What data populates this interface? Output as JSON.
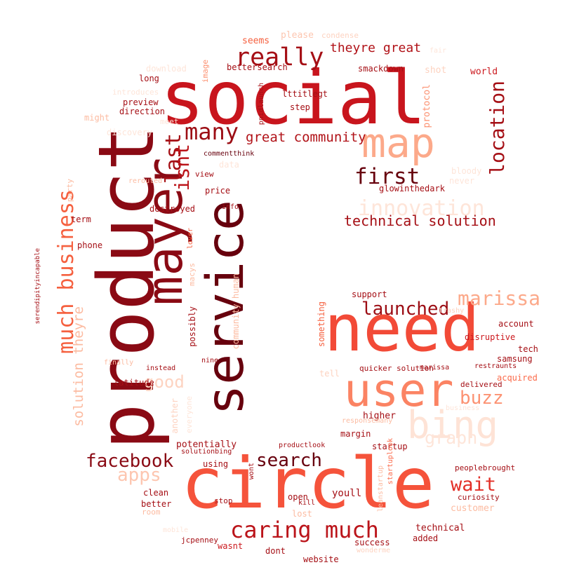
{
  "words": [
    {
      "text": "social",
      "color": "#c8151d"
    },
    {
      "text": "product",
      "color": "#8a0a14"
    },
    {
      "text": "circle",
      "color": "#f5533b"
    },
    {
      "text": "need",
      "color": "#f24a37"
    },
    {
      "text": "service",
      "color": "#67000d"
    },
    {
      "text": "mayer",
      "color": "#8a0a14"
    },
    {
      "text": "user",
      "color": "#fb8363"
    },
    {
      "text": "map",
      "color": "#fca98a"
    },
    {
      "text": "bing",
      "color": "#fee3d6"
    },
    {
      "text": "location",
      "color": "#a50f15"
    },
    {
      "text": "really",
      "color": "#a50f15"
    },
    {
      "text": "many",
      "color": "#9c0d14"
    },
    {
      "text": "first",
      "color": "#67000d"
    },
    {
      "text": "last",
      "color": "#a50f15"
    },
    {
      "text": "isnt",
      "color": "#bb141a"
    },
    {
      "text": "innovation",
      "color": "#fee5d9"
    },
    {
      "text": "technical solution",
      "color": "#a50f15"
    },
    {
      "text": "great community",
      "color": "#b11218"
    },
    {
      "text": "theyre great",
      "color": "#b11218"
    },
    {
      "text": "much business",
      "color": "#f5603f"
    },
    {
      "text": "solution theyre",
      "color": "#fcbba1"
    },
    {
      "text": "good",
      "color": "#fdd3c1"
    },
    {
      "text": "launched",
      "color": "#9c0d14"
    },
    {
      "text": "marissa",
      "color": "#fca98a"
    },
    {
      "text": "buzz",
      "color": "#fc9272"
    },
    {
      "text": "graph",
      "color": "#fee5d9"
    },
    {
      "text": "wait",
      "color": "#e32f27"
    },
    {
      "text": "facebook",
      "color": "#8a0a14"
    },
    {
      "text": "search",
      "color": "#67000d"
    },
    {
      "text": "apps",
      "color": "#fdc6b0"
    },
    {
      "text": "caring much",
      "color": "#bb141a"
    },
    {
      "text": "please",
      "color": "#fdc6b0"
    },
    {
      "text": "condense",
      "color": "#fdd3c1"
    },
    {
      "text": "seems",
      "color": "#f5603f"
    },
    {
      "text": "fair",
      "color": "#fee5d9"
    },
    {
      "text": "bettersearch",
      "color": "#a50f15"
    },
    {
      "text": "smackdown",
      "color": "#a50f15"
    },
    {
      "text": "world",
      "color": "#cb181d"
    },
    {
      "text": "shot",
      "color": "#fdd3c1"
    },
    {
      "text": "protocol",
      "color": "#fc9272"
    },
    {
      "text": "image",
      "color": "#fc9272"
    },
    {
      "text": "download",
      "color": "#fee5d9"
    },
    {
      "text": "long",
      "color": "#a50f15"
    },
    {
      "text": "introduces",
      "color": "#fee5d9"
    },
    {
      "text": "preview",
      "color": "#a50f15"
    },
    {
      "text": "direction",
      "color": "#a50f15"
    },
    {
      "text": "might",
      "color": "#fcbba1"
    },
    {
      "text": "meet",
      "color": "#fee5d9"
    },
    {
      "text": "lttitlegt",
      "color": "#a50f15"
    },
    {
      "text": "step",
      "color": "#a50f15"
    },
    {
      "text": "pnidlaunch",
      "color": "#a50f15"
    },
    {
      "text": "discovery",
      "color": "#fee5d9"
    },
    {
      "text": "commentthink",
      "color": "#67000d"
    },
    {
      "text": "view",
      "color": "#a50f15"
    },
    {
      "text": "data",
      "color": "#fee5d9"
    },
    {
      "text": "bloody",
      "color": "#fee5d9"
    },
    {
      "text": "never",
      "color": "#fee5d9"
    },
    {
      "text": "glowinthedark",
      "color": "#a50f15"
    },
    {
      "text": "rerouted",
      "color": "#fcbba1"
    },
    {
      "text": "party",
      "color": "#fcbba1"
    },
    {
      "text": "price",
      "color": "#a50f15"
    },
    {
      "text": "destroyed",
      "color": "#a50f15"
    },
    {
      "text": "info",
      "color": "#a50f15"
    },
    {
      "text": "term",
      "color": "#a50f15"
    },
    {
      "text": "lover",
      "color": "#f5603f"
    },
    {
      "text": "phone",
      "color": "#a50f15"
    },
    {
      "text": "serendipityincapable",
      "color": "#a50f15"
    },
    {
      "text": "macys",
      "color": "#fcbba1"
    },
    {
      "text": "possibly",
      "color": "#a50f15"
    },
    {
      "text": "community human",
      "color": "#fcbba1"
    },
    {
      "text": "support",
      "color": "#a50f15"
    },
    {
      "text": "something",
      "color": "#f5603f"
    },
    {
      "text": "trashy",
      "color": "#fdd3c1"
    },
    {
      "text": "account",
      "color": "#a50f15"
    },
    {
      "text": "disruptive",
      "color": "#cb181d"
    },
    {
      "text": "tech",
      "color": "#a50f15"
    },
    {
      "text": "samsung",
      "color": "#a50f15"
    },
    {
      "text": "acquired",
      "color": "#fb6a4a"
    },
    {
      "text": "finally",
      "color": "#fcbba1"
    },
    {
      "text": "instead",
      "color": "#a50f15"
    },
    {
      "text": "nine",
      "color": "#a50f15"
    },
    {
      "text": "tell",
      "color": "#fdd3c1"
    },
    {
      "text": "quicker solution",
      "color": "#a50f15"
    },
    {
      "text": "marissa",
      "color": "#a50f15"
    },
    {
      "text": "restraunts",
      "color": "#a50f15"
    },
    {
      "text": "delivered",
      "color": "#a50f15"
    },
    {
      "text": "latitude",
      "color": "#a50f15"
    },
    {
      "text": "another",
      "color": "#fdd3c1"
    },
    {
      "text": "everyone",
      "color": "#fee5d9"
    },
    {
      "text": "higher",
      "color": "#a50f15"
    },
    {
      "text": "responsemany",
      "color": "#fcbba1"
    },
    {
      "text": "business",
      "color": "#fee5d9"
    },
    {
      "text": "potentially",
      "color": "#a50f15"
    },
    {
      "text": "solutionbing",
      "color": "#a50f15"
    },
    {
      "text": "productlook",
      "color": "#a50f15"
    },
    {
      "text": "margin",
      "color": "#a50f15"
    },
    {
      "text": "using",
      "color": "#a50f15"
    },
    {
      "text": "startup",
      "color": "#a50f15"
    },
    {
      "text": "startuplook",
      "color": "#fb6a4a"
    },
    {
      "text": "peoplebrought",
      "color": "#a50f15"
    },
    {
      "text": "clean",
      "color": "#a50f15"
    },
    {
      "text": "wont",
      "color": "#a50f15"
    },
    {
      "text": "open",
      "color": "#a50f15"
    },
    {
      "text": "kill",
      "color": "#a50f15"
    },
    {
      "text": "youll",
      "color": "#a50f15"
    },
    {
      "text": "leanstartup",
      "color": "#fcbba1"
    },
    {
      "text": "curiosity",
      "color": "#a50f15"
    },
    {
      "text": "customer",
      "color": "#fcbba1"
    },
    {
      "text": "stop",
      "color": "#a50f15"
    },
    {
      "text": "better",
      "color": "#a50f15"
    },
    {
      "text": "room",
      "color": "#fcbba1"
    },
    {
      "text": "lost",
      "color": "#fcbba1"
    },
    {
      "text": "mobile",
      "color": "#fee5d9"
    },
    {
      "text": "technical",
      "color": "#a50f15"
    },
    {
      "text": "jcpenney",
      "color": "#a50f15"
    },
    {
      "text": "added",
      "color": "#a50f15"
    },
    {
      "text": "success",
      "color": "#a50f15"
    },
    {
      "text": "wasnt",
      "color": "#cb181d"
    },
    {
      "text": "dont",
      "color": "#a50f15"
    },
    {
      "text": "website",
      "color": "#a50f15"
    },
    {
      "text": "wonderme",
      "color": "#fdd3c1"
    }
  ]
}
